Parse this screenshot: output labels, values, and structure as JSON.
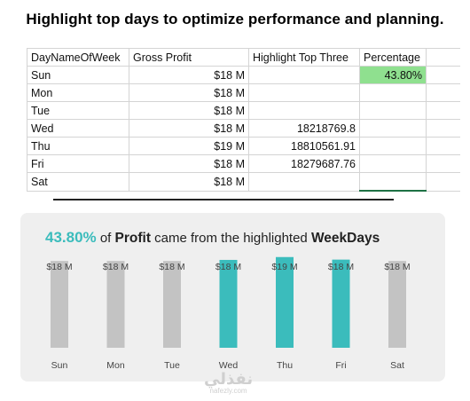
{
  "headline": "Highlight top days to optimize performance and planning.",
  "sheet": {
    "headers": [
      "DayNameOfWeek",
      "Gross Profit",
      "Highlight Top Three",
      "Percentage"
    ],
    "rows": [
      {
        "day": "Sun",
        "gross": "$18 M",
        "top": "",
        "pct": "43.80%"
      },
      {
        "day": "Mon",
        "gross": "$18 M",
        "top": "",
        "pct": ""
      },
      {
        "day": "Tue",
        "gross": "$18 M",
        "top": "",
        "pct": ""
      },
      {
        "day": "Wed",
        "gross": "$18 M",
        "top": "18218769.8",
        "pct": ""
      },
      {
        "day": "Thu",
        "gross": "$19 M",
        "top": "18810561.91",
        "pct": ""
      },
      {
        "day": "Fri",
        "gross": "$18 M",
        "top": "18279687.76",
        "pct": ""
      },
      {
        "day": "Sat",
        "gross": "$18 M",
        "top": "",
        "pct": ""
      }
    ],
    "colors": {
      "pct_fill": "#8fe08f",
      "selection": "#1e7145"
    }
  },
  "card": {
    "pct": "43.80%",
    "of": "of",
    "profit": "Profit",
    "mid": "came from the highlighted",
    "weekdays": "WeekDays"
  },
  "watermark": {
    "main": "نفذلي",
    "sub": "nafezly.com"
  },
  "chart_data": {
    "type": "bar",
    "categories": [
      "Sun",
      "Mon",
      "Tue",
      "Wed",
      "Thu",
      "Fri",
      "Sat"
    ],
    "values": [
      18,
      18,
      18,
      18.22,
      18.81,
      18.28,
      18
    ],
    "data_labels": [
      "$18 M",
      "$18 M",
      "$18 M",
      "$18 M",
      "$19 M",
      "$18 M",
      "$18 M"
    ],
    "highlighted": [
      false,
      false,
      false,
      true,
      true,
      true,
      false
    ],
    "ylim": [
      0,
      19.5
    ],
    "grid": false,
    "colors": {
      "highlight": "#3bbcbc",
      "base": "#c3c3c3",
      "label": "#444444"
    }
  }
}
